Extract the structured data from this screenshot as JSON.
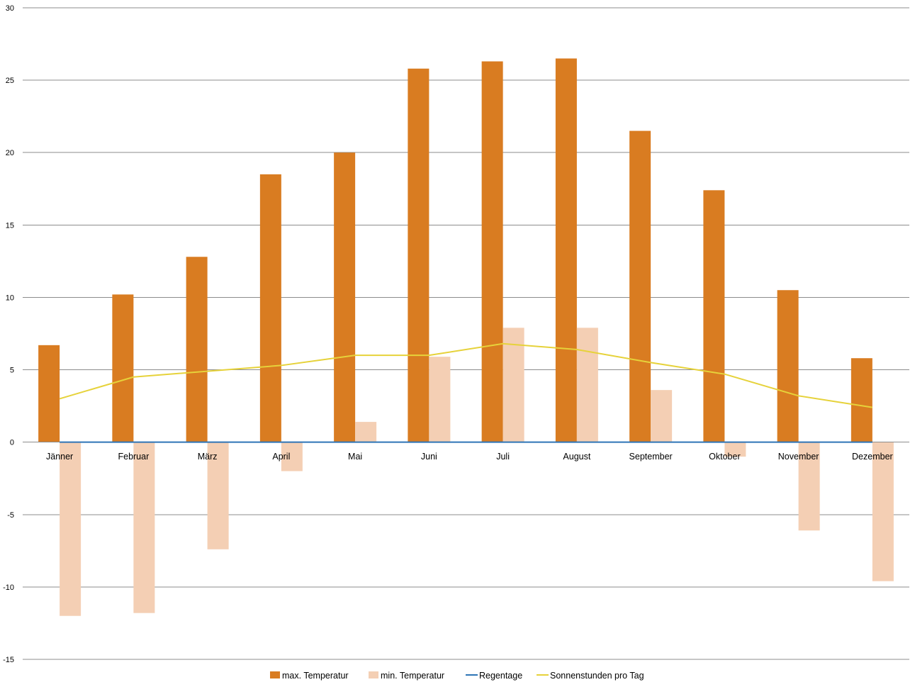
{
  "chart_data": {
    "type": "bar",
    "categories": [
      "Jänner",
      "Februar",
      "März",
      "April",
      "Mai",
      "Juni",
      "Juli",
      "August",
      "September",
      "Oktober",
      "November",
      "Dezember"
    ],
    "ylim": [
      -15,
      30
    ],
    "yticks": [
      30,
      25,
      20,
      15,
      10,
      5,
      0,
      -5,
      -10,
      -15
    ],
    "grid": true,
    "legend_position": "bottom",
    "series": [
      {
        "name": "max. Temperatur",
        "kind": "bar",
        "color": "#d97c21",
        "values": [
          6.7,
          10.2,
          12.8,
          18.5,
          20.0,
          25.8,
          26.3,
          26.5,
          21.5,
          17.4,
          10.5,
          5.8
        ]
      },
      {
        "name": "min. Temperatur",
        "kind": "bar",
        "color": "#f4cfb4",
        "values": [
          -12.0,
          -11.8,
          -7.4,
          -2.0,
          1.4,
          5.9,
          7.9,
          7.9,
          3.6,
          -1.0,
          -6.1,
          -9.6
        ]
      },
      {
        "name": "Regentage",
        "kind": "line",
        "color": "#2e75b6",
        "values": [
          0,
          0,
          0,
          0,
          0,
          0,
          0,
          0,
          0,
          0,
          0,
          0
        ]
      },
      {
        "name": "Sonnenstunden pro Tag",
        "kind": "line",
        "color": "#e6d23a",
        "values": [
          3.0,
          4.5,
          4.9,
          5.3,
          6.0,
          6.0,
          6.8,
          6.4,
          5.5,
          4.7,
          3.2,
          2.4
        ]
      }
    ]
  }
}
